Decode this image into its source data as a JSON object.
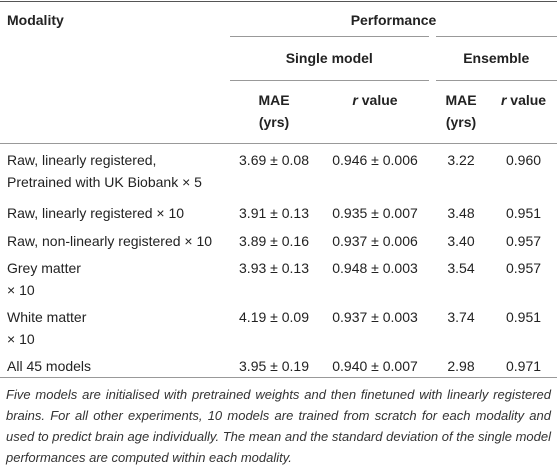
{
  "header": {
    "modality": "Modality",
    "performance": "Performance",
    "single_model": "Single model",
    "ensemble": "Ensemble",
    "mae": [
      "MAE",
      "(yrs)"
    ],
    "r_value": {
      "symbol": "r",
      "rest": "value"
    }
  },
  "table": {
    "rows": [
      [
        [
          "Raw, linearly registered,",
          "Pretrained with UK Biobank × 5"
        ],
        "3.69 ± 0.08",
        "0.946 ± 0.006",
        "3.22",
        "0.960"
      ],
      [
        [
          "Raw, linearly registered × 10"
        ],
        "3.91 ± 0.13",
        "0.935 ± 0.007",
        "3.48",
        "0.951"
      ],
      [
        [
          "Raw, non-linearly registered × 10"
        ],
        "3.89 ± 0.16",
        "0.937 ± 0.006",
        "3.40",
        "0.957"
      ],
      [
        [
          "Grey matter",
          "× 10"
        ],
        "3.93 ± 0.13",
        "0.948 ± 0.003",
        "3.54",
        "0.957"
      ],
      [
        [
          "White matter",
          "× 10"
        ],
        "4.19 ± 0.09",
        "0.937 ± 0.003",
        "3.74",
        "0.951"
      ],
      [
        [
          "All 45 models"
        ],
        "3.95 ± 0.19",
        "0.940 ± 0.007",
        "2.98",
        "0.971"
      ]
    ]
  },
  "footnote": "Five models are initialised with pretrained weights and then finetuned with linearly registered brains. For all other experiments, 10 models are trained from scratch for each modality and used to predict brain age individually. The mean and the standard deviation of the single model performances are computed within each modality."
}
